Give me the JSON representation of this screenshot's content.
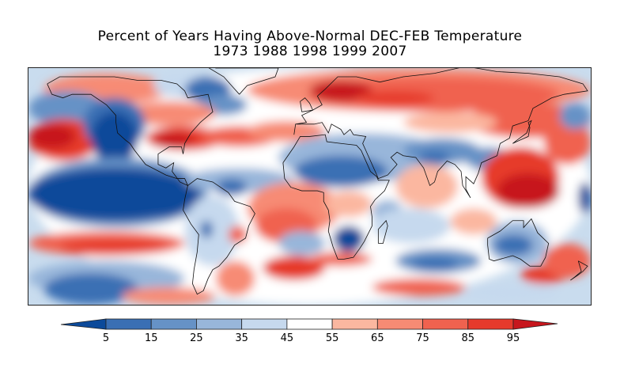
{
  "title": {
    "line1": "Percent of Years Having Above-Normal DEC-FEB Temperature",
    "line2": "1973 1988 1998 1999 2007"
  },
  "map": {
    "type": "global-anomaly-map",
    "projection": "cylindrical",
    "variable": "Percent of years with above-normal DEC-FEB temperature",
    "years": [
      "1973",
      "1988",
      "1998",
      "1999",
      "2007"
    ],
    "regions": [
      {
        "name": "equatorial-central-east-pacific",
        "category": "<5",
        "desc": "strong cold (La Nina-like) tongue"
      },
      {
        "name": "north-pacific-hawaii",
        "category": ">95",
        "desc": "warm"
      },
      {
        "name": "southeast-united-states",
        "category": ">95",
        "desc": "warm"
      },
      {
        "name": "northern-europe-scandinavia",
        "category": ">95",
        "desc": "warm"
      },
      {
        "name": "western-pacific-philippines",
        "category": "85-95",
        "desc": "warm"
      },
      {
        "name": "north-africa-middle-east",
        "category": "5-25",
        "desc": "cold"
      },
      {
        "name": "southern-africa",
        "category": "<5",
        "desc": "cold"
      },
      {
        "name": "australia-interior",
        "category": "15-35",
        "desc": "cold"
      },
      {
        "name": "south-indian-ocean",
        "category": "15-25",
        "desc": "cold"
      },
      {
        "name": "southeast-australia-tasmania",
        "category": "85-95",
        "desc": "warm"
      }
    ]
  },
  "colorbar": {
    "ticks": [
      "5",
      "15",
      "25",
      "35",
      "45",
      "55",
      "65",
      "75",
      "85",
      "95"
    ],
    "colors": {
      "below_5": "#0c4a9a",
      "5-15": "#3a6fb4",
      "15-25": "#6692c6",
      "25-35": "#98b6da",
      "35-45": "#c6d9ee",
      "45-55": "#ffffff",
      "55-65": "#fbb7a0",
      "65-75": "#f78b74",
      "75-85": "#f0624f",
      "85-95": "#e63a2c",
      "above_95": "#c7161d"
    }
  }
}
